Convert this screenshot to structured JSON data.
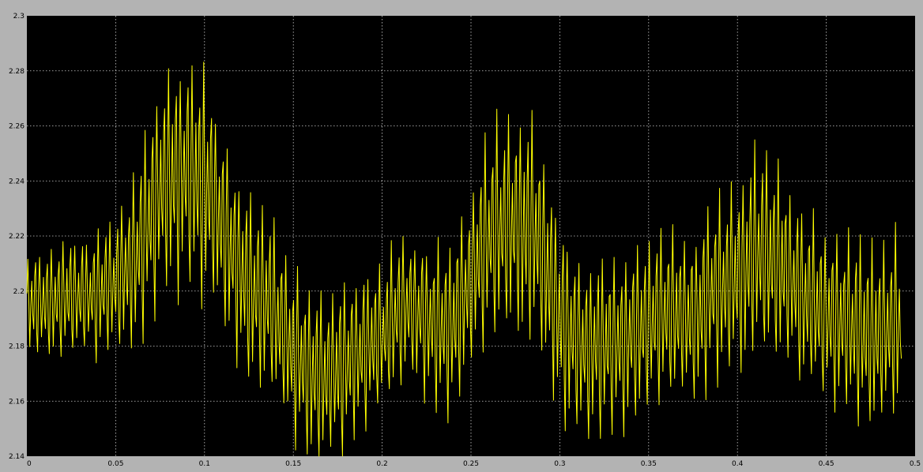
{
  "chart_data": {
    "type": "line",
    "title": "",
    "xlabel": "",
    "ylabel": "",
    "xlim": [
      0,
      0.5
    ],
    "ylim": [
      2.14,
      2.3
    ],
    "x_ticks": [
      "0",
      "0.05",
      "0.1",
      "0.15",
      "0.2",
      "0.25",
      "0.3",
      "0.35",
      "0.4",
      "0.45",
      "0.5"
    ],
    "y_ticks": [
      "2.14",
      "2.16",
      "2.18",
      "2.2",
      "2.22",
      "2.24",
      "2.26",
      "2.28",
      "2.3"
    ],
    "grid": true,
    "colors": {
      "background": "#000000",
      "frame": "#b3b3b3",
      "trace": "#ffff00",
      "grid": "#cccccc",
      "text": "#000000"
    },
    "series": [
      {
        "x": [
          0,
          0.0125,
          0.025,
          0.0375,
          0.05,
          0.0625,
          0.075,
          0.0875,
          0.1,
          0.1125,
          0.125,
          0.1375,
          0.15,
          0.1625,
          0.175,
          0.1875,
          0.2,
          0.2125,
          0.225,
          0.2375,
          0.25,
          0.2625,
          0.275,
          0.2875,
          0.3,
          0.3125,
          0.325,
          0.3375,
          0.35,
          0.3625,
          0.375,
          0.3875,
          0.4,
          0.4125,
          0.425,
          0.4375,
          0.45,
          0.4625,
          0.475,
          0.4925
        ],
        "center": [
          2.195,
          2.196,
          2.198,
          2.198,
          2.203,
          2.213,
          2.238,
          2.243,
          2.24,
          2.22,
          2.2,
          2.195,
          2.178,
          2.168,
          2.17,
          2.178,
          2.183,
          2.195,
          2.19,
          2.185,
          2.205,
          2.223,
          2.225,
          2.22,
          2.19,
          2.18,
          2.18,
          2.182,
          2.188,
          2.192,
          2.19,
          2.2,
          2.205,
          2.215,
          2.208,
          2.198,
          2.19,
          2.188,
          2.182,
          2.19
        ],
        "spread": [
          0.018,
          0.02,
          0.022,
          0.022,
          0.023,
          0.03,
          0.04,
          0.042,
          0.04,
          0.035,
          0.032,
          0.03,
          0.032,
          0.03,
          0.03,
          0.028,
          0.027,
          0.026,
          0.027,
          0.03,
          0.032,
          0.038,
          0.042,
          0.04,
          0.035,
          0.032,
          0.03,
          0.03,
          0.03,
          0.03,
          0.03,
          0.032,
          0.035,
          0.038,
          0.036,
          0.032,
          0.03,
          0.032,
          0.034,
          0.032
        ]
      }
    ]
  }
}
